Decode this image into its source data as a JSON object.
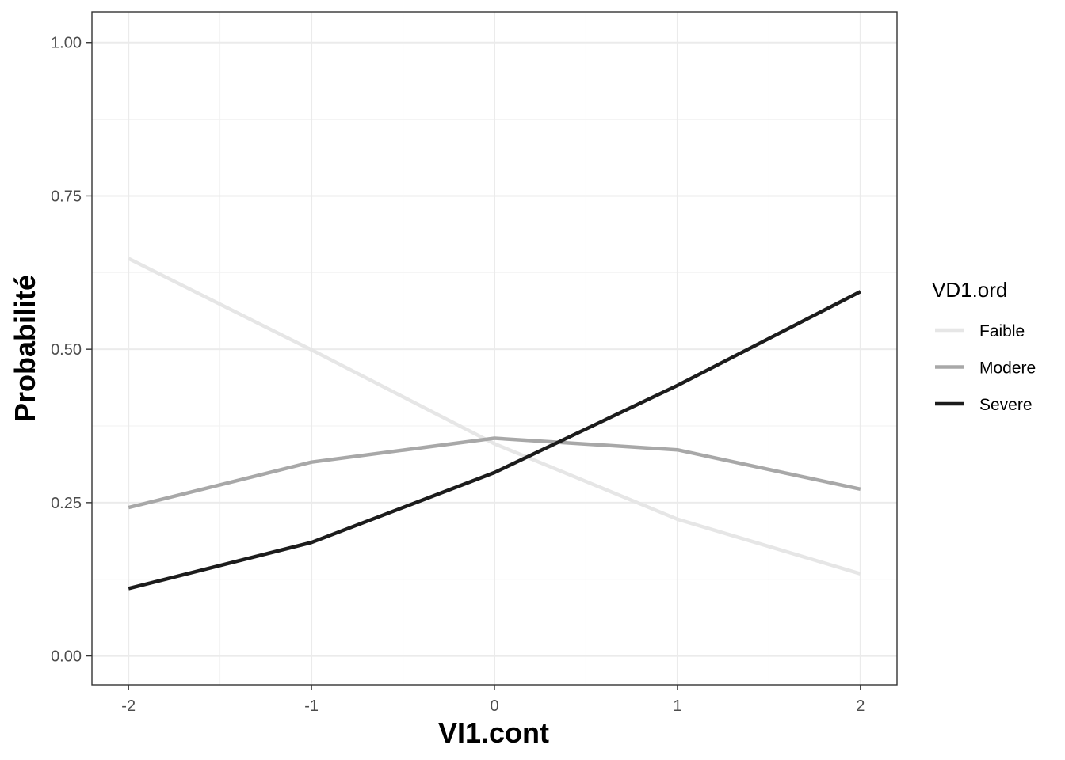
{
  "chart_data": {
    "type": "line",
    "title": "",
    "xlabel": "VI1.cont",
    "ylabel": "Probabilité",
    "x": [
      -2,
      -1,
      0,
      1,
      2
    ],
    "x_ticks": [
      -2,
      -1,
      0,
      1,
      2
    ],
    "x_tick_labels": [
      "-2",
      "-1",
      "0",
      "1",
      "2"
    ],
    "y_ticks": [
      0,
      0.25,
      0.5,
      0.75,
      1
    ],
    "y_tick_labels": [
      "0.00",
      "0.25",
      "0.50",
      "0.75",
      "1.00"
    ],
    "xlim": [
      -2.2,
      2.2
    ],
    "ylim": [
      -0.047,
      1.05
    ],
    "grid": true,
    "legend_position": "right",
    "legend_title": "VD1.ord",
    "series": [
      {
        "name": "Faible",
        "color": "#e6e6e6",
        "values": [
          0.648,
          0.499,
          0.346,
          0.223,
          0.134
        ]
      },
      {
        "name": "Modere",
        "color": "#a8a8a8",
        "values": [
          0.242,
          0.316,
          0.355,
          0.336,
          0.272
        ]
      },
      {
        "name": "Severe",
        "color": "#1c1c1c",
        "values": [
          0.11,
          0.185,
          0.299,
          0.441,
          0.594
        ]
      }
    ]
  }
}
